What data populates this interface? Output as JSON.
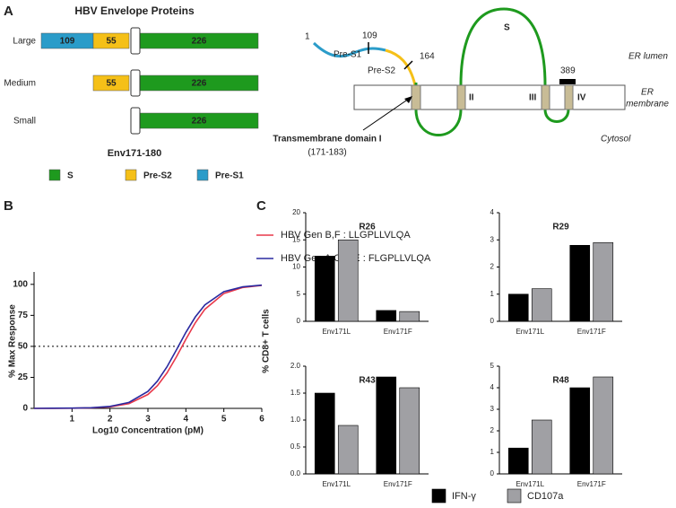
{
  "panel_labels": [
    "A",
    "B",
    "C"
  ],
  "proteins": {
    "title": "HBV Envelope Proteins",
    "rows": [
      {
        "name": "Large",
        "segments": [
          {
            "label": "109",
            "color": "#2b9cc9"
          },
          {
            "label": "55",
            "color": "#f5c018"
          },
          {
            "label": "226",
            "color": "#1e9a1e"
          }
        ]
      },
      {
        "name": "Medium",
        "segments": [
          {
            "label": "55",
            "color": "#f5c018"
          },
          {
            "label": "226",
            "color": "#1e9a1e"
          }
        ]
      },
      {
        "name": "Small",
        "segments": [
          {
            "label": "226",
            "color": "#1e9a1e"
          }
        ]
      }
    ],
    "epitope": "Env171-180",
    "legend": [
      {
        "name": "S",
        "color": "#1e9a1e"
      },
      {
        "name": "Pre-S2",
        "color": "#f5c018"
      },
      {
        "name": "Pre-S1",
        "color": "#2b9cc9"
      }
    ]
  },
  "topology": {
    "start": "1",
    "pre_s1": "Pre-S1",
    "pos109": "109",
    "pre_s2": "Pre-S2",
    "pos164": "164",
    "s": "S",
    "er_lumen": "ER lumen",
    "er_membrane": [
      "ER",
      "membrane"
    ],
    "pos389": "389",
    "tm2": "II",
    "tm3": "III",
    "tm4": "IV",
    "cytosol": "Cytosol",
    "tm1": "Transmembrane domain I",
    "tm1_range": "(171-183)"
  },
  "chart_data": [
    {
      "type": "line",
      "xlabel": "Log10 Concentration (pM)",
      "ylabel": "% Max Response",
      "x": [
        0,
        0.5,
        1,
        1.5,
        2,
        2.5,
        3,
        3.25,
        3.5,
        3.75,
        4,
        4.25,
        4.5,
        5,
        5.5,
        6
      ],
      "series": [
        {
          "name": "HBV Gen B,F : LLGPLLVLQA",
          "color": "#e8384a",
          "values": [
            0,
            0,
            0.1,
            0.4,
            1.2,
            3.8,
            11.2,
            18.3,
            28.5,
            41.5,
            55.7,
            69.1,
            79.9,
            92.6,
            97.5,
            99.2
          ]
        },
        {
          "name": "HBV Gen A,C,D,E : FLGPLLVLQA",
          "color": "#2a2aa0",
          "values": [
            0,
            0.1,
            0.2,
            0.5,
            1.6,
            4.8,
            13.7,
            22.0,
            33.4,
            47.1,
            61.3,
            73.8,
            83.4,
            94.1,
            98.0,
            99.4
          ]
        }
      ],
      "xlim": [
        0,
        6
      ],
      "xticks": [
        1,
        2,
        3,
        4,
        5,
        6
      ],
      "ylim": [
        0,
        110
      ],
      "yticks": [
        0,
        25,
        50,
        75,
        100
      ],
      "reference_line": 50
    },
    {
      "type": "bar",
      "title": "R26",
      "ylabel": "% CD8+ T cells",
      "categories": [
        "Env171L",
        "Env171F"
      ],
      "series": [
        {
          "name": "IFN-γ",
          "color": "#000000",
          "values": [
            12,
            2
          ]
        },
        {
          "name": "CD107a",
          "color": "#a0a0a4",
          "values": [
            15,
            1.8
          ]
        }
      ],
      "ylim": [
        0,
        20
      ],
      "yticks": [
        0,
        5,
        10,
        15,
        20
      ]
    },
    {
      "type": "bar",
      "title": "R29",
      "categories": [
        "Env171L",
        "Env171F"
      ],
      "series": [
        {
          "color": "#000000",
          "values": [
            1.0,
            2.8
          ]
        },
        {
          "color": "#a0a0a4",
          "values": [
            1.2,
            2.9
          ]
        }
      ],
      "ylim": [
        0,
        4
      ],
      "yticks": [
        0,
        1,
        2,
        3,
        4
      ]
    },
    {
      "type": "bar",
      "title": "R43",
      "categories": [
        "Env171L",
        "Env171F"
      ],
      "series": [
        {
          "color": "#000000",
          "values": [
            1.5,
            1.8
          ]
        },
        {
          "color": "#a0a0a4",
          "values": [
            0.9,
            1.6
          ]
        }
      ],
      "ylim": [
        0,
        2
      ],
      "yticks": [
        {
          "value": 0,
          "label": "0.0"
        },
        {
          "value": 0.5,
          "label": "0.5"
        },
        {
          "value": 1,
          "label": "1.0"
        },
        {
          "value": 1.5,
          "label": "1.5"
        },
        {
          "value": 2,
          "label": "2.0"
        }
      ]
    },
    {
      "type": "bar",
      "title": "R48",
      "categories": [
        "Env171L",
        "Env171F"
      ],
      "series": [
        {
          "color": "#000000",
          "values": [
            1.2,
            4.0
          ]
        },
        {
          "color": "#a0a0a4",
          "values": [
            2.5,
            4.5
          ]
        }
      ],
      "ylim": [
        0,
        5
      ],
      "yticks": [
        0,
        1,
        2,
        3,
        4,
        5
      ]
    }
  ]
}
